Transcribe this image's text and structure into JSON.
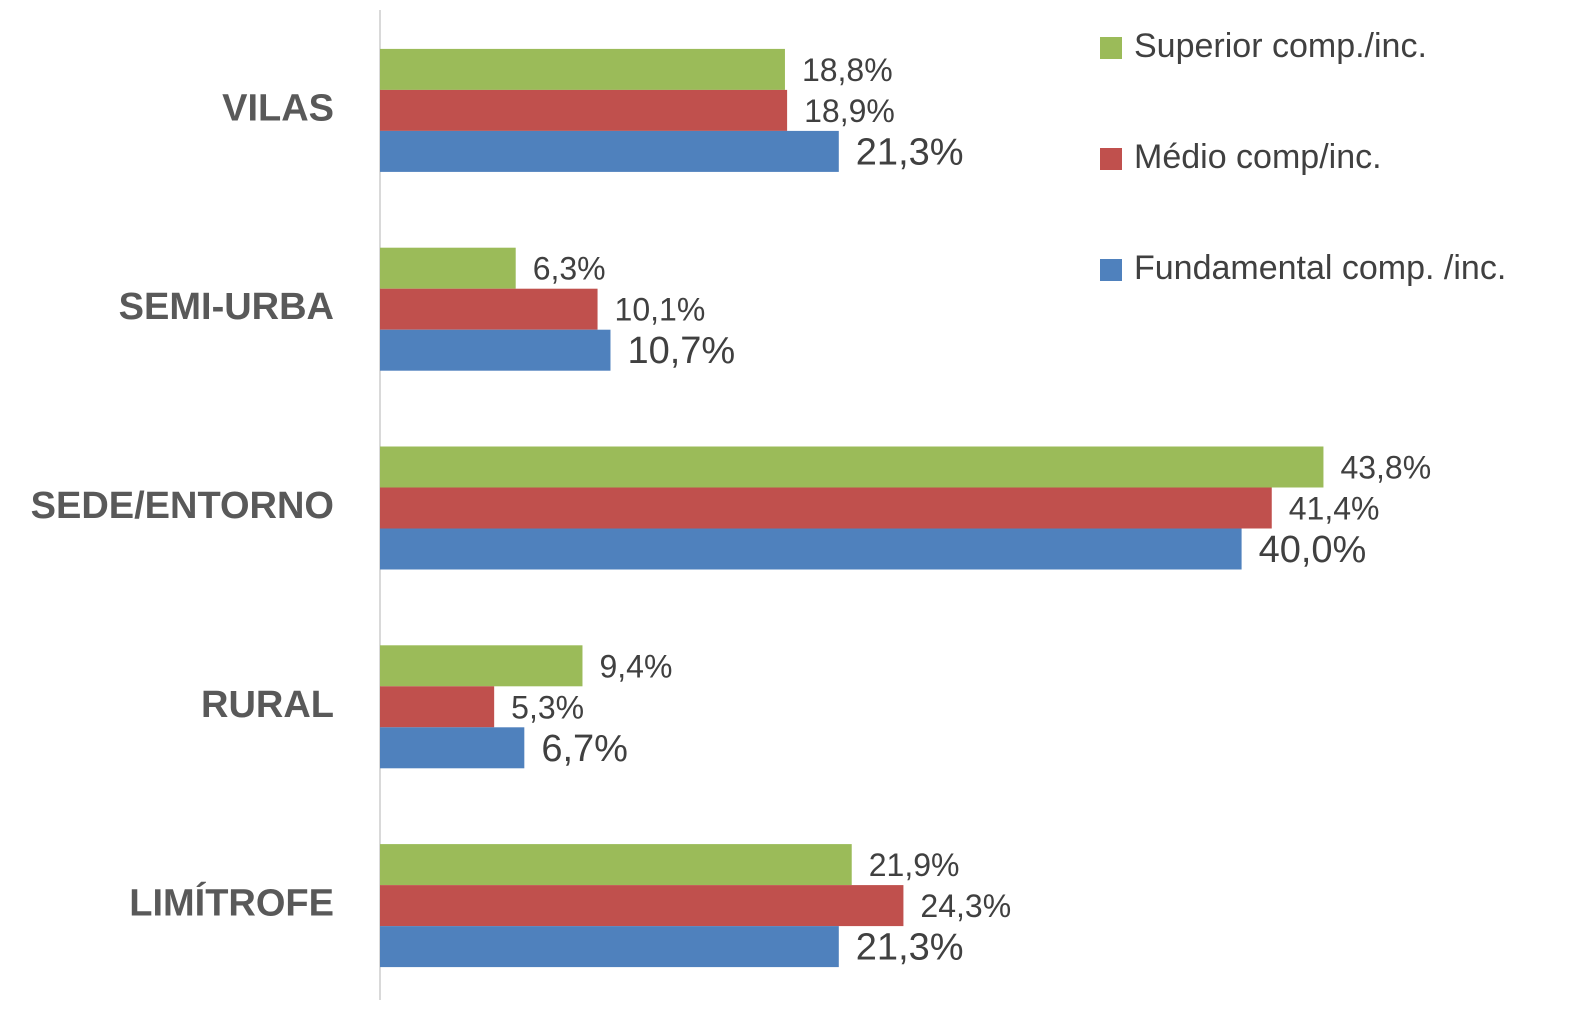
{
  "chart_data": {
    "type": "bar",
    "orientation": "horizontal",
    "categories": [
      "VILAS",
      "SEMI-URBA",
      "SEDE/ENTORNO",
      "RURAL",
      "LIMÍTROFE"
    ],
    "series": [
      {
        "name": "Superior comp./inc.",
        "color": "#9bbb59",
        "values": [
          18.8,
          6.3,
          43.8,
          9.4,
          21.9
        ],
        "value_labels": [
          "18,8%",
          "6,3%",
          "43,8%",
          "9,4%",
          "21,9%"
        ]
      },
      {
        "name": "Médio comp/inc.",
        "color": "#c0504d",
        "values": [
          18.9,
          10.1,
          41.4,
          5.3,
          24.3
        ],
        "value_labels": [
          "18,9%",
          "10,1%",
          "41,4%",
          "5,3%",
          "24,3%"
        ]
      },
      {
        "name": "Fundamental comp. /inc.",
        "color": "#4f81bd",
        "values": [
          21.3,
          10.7,
          40.0,
          6.7,
          21.3
        ],
        "value_labels": [
          "21,3%",
          "10,7%",
          "40,0%",
          "6,7%",
          "21,3%"
        ]
      }
    ],
    "xlim": [
      0,
      50
    ],
    "legend": "top-right"
  }
}
